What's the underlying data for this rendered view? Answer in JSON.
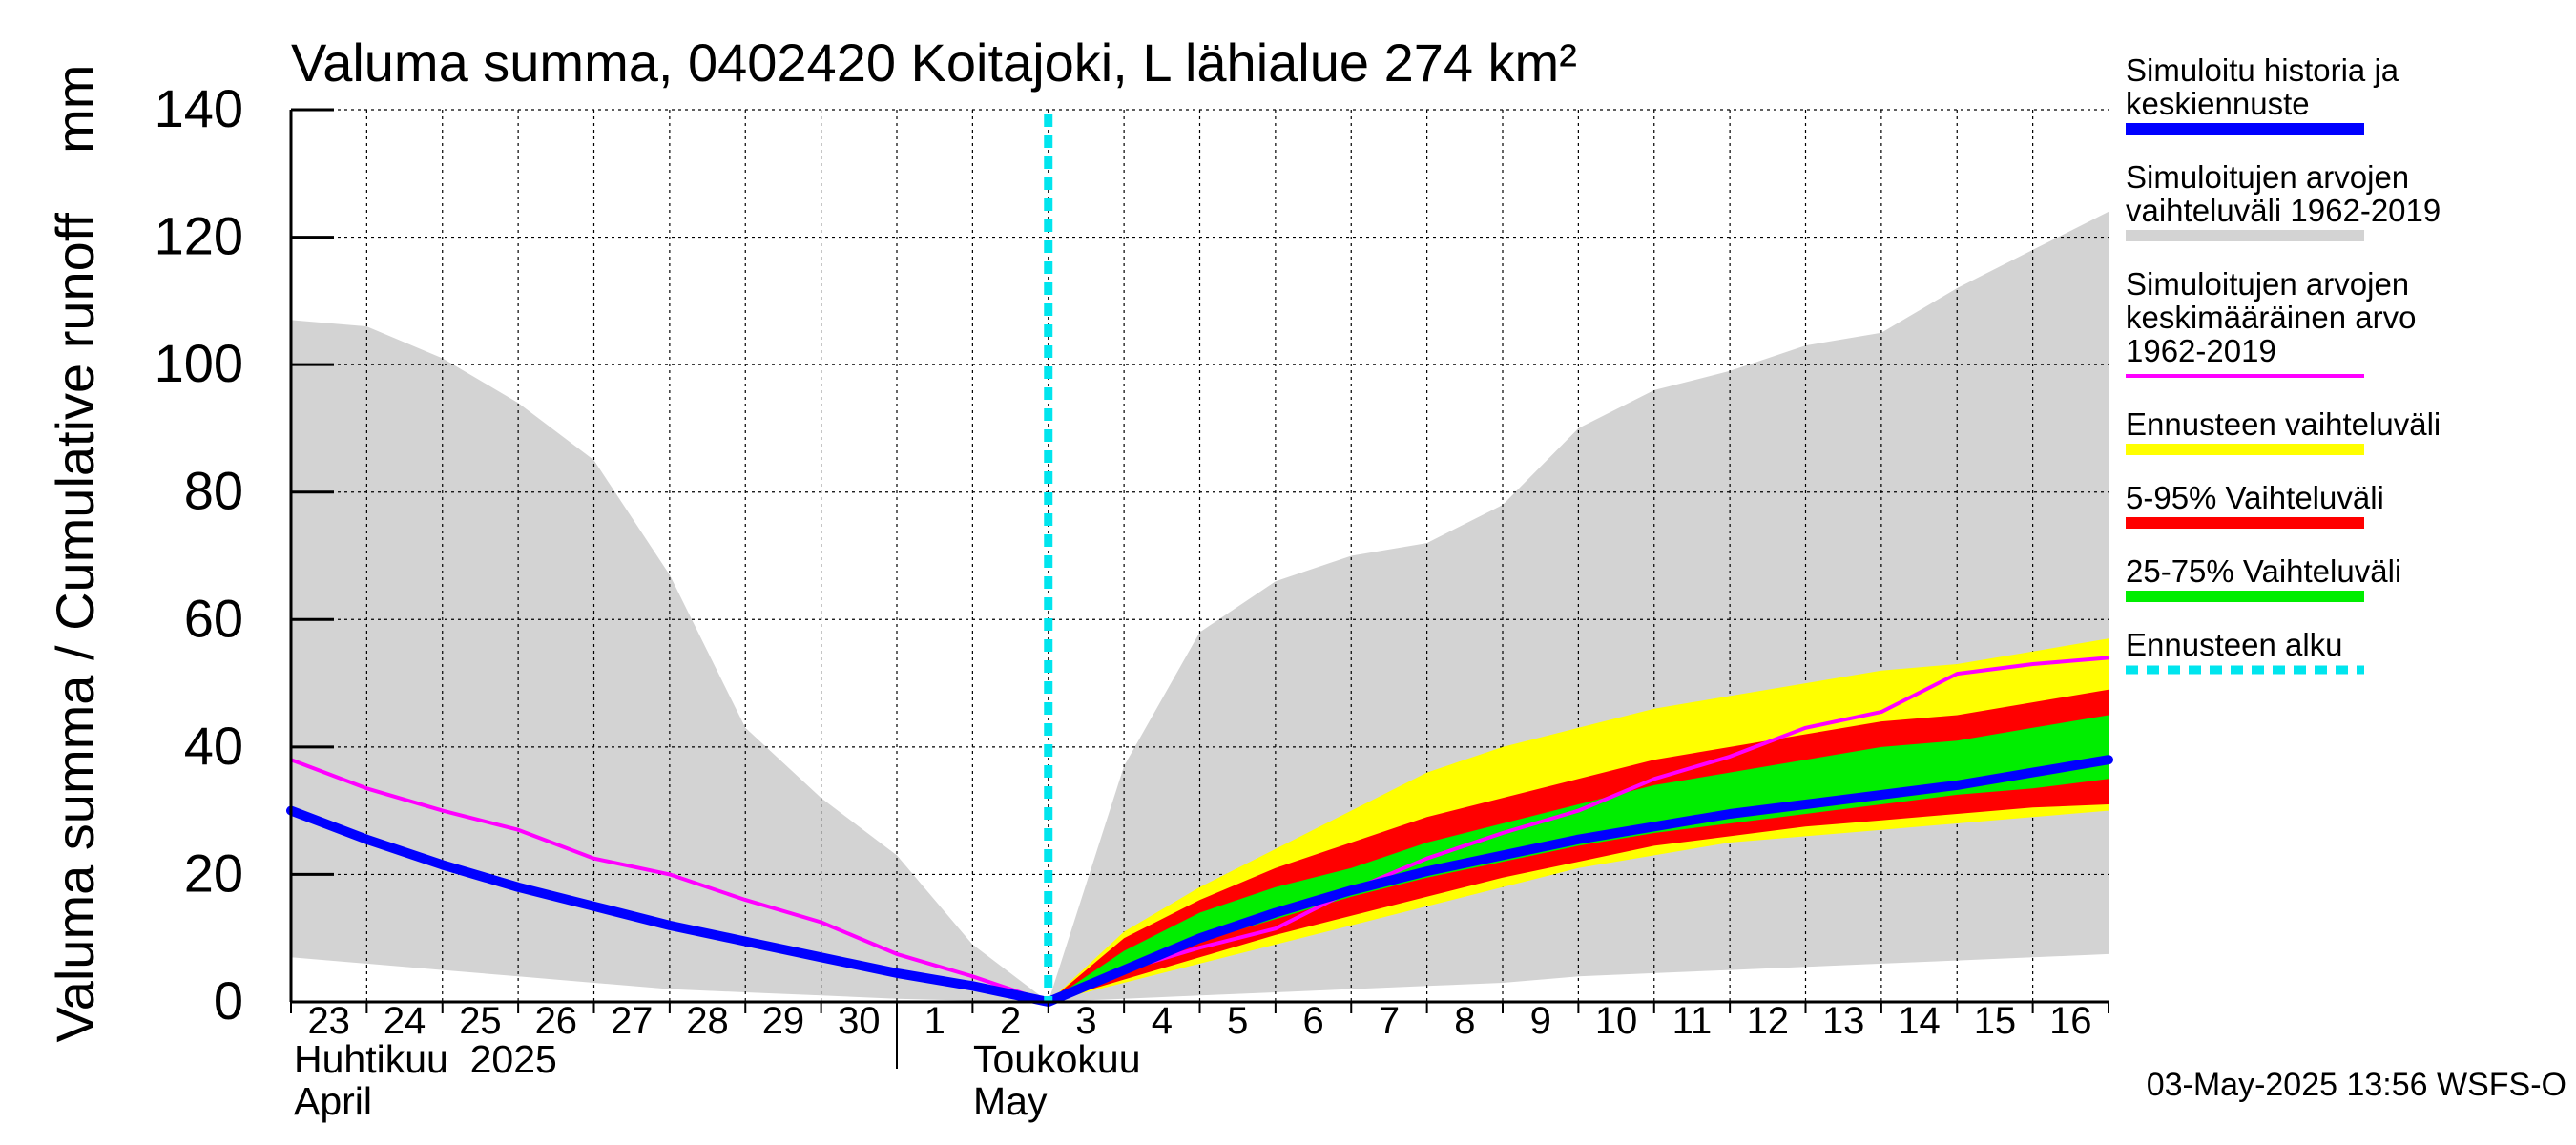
{
  "chart_data": {
    "type": "area",
    "title": "Valuma summa, 0402420 Koitajoki, L lähialue 274 km²",
    "ylabel": "Valuma summa / Cumulative runoff    mm",
    "ylim": [
      0,
      140
    ],
    "yticks": [
      "0",
      "20",
      "40",
      "60",
      "80",
      "100",
      "120",
      "140"
    ],
    "xlim": [
      0,
      24
    ],
    "day_labels": [
      "23",
      "24",
      "25",
      "26",
      "27",
      "28",
      "29",
      "30",
      "1",
      "2",
      "3",
      "4",
      "5",
      "6",
      "7",
      "8",
      "9",
      "10",
      "11",
      "12",
      "13",
      "14",
      "15",
      "16"
    ],
    "month_labels": {
      "april_fi": "Huhtikuu  2025",
      "april_en": "April",
      "may_fi": "Toukokuu",
      "may_en": "May"
    },
    "forecast_start_x": 10.0,
    "x": [
      0,
      1,
      2,
      3,
      4,
      5,
      6,
      7,
      8,
      9,
      10,
      11,
      12,
      13,
      14,
      15,
      16,
      17,
      18,
      19,
      20,
      21,
      22,
      23,
      24
    ],
    "hist_range": {
      "name": "Simuloitujen arvojen vaihteluväli 1962-2019",
      "color": "#d3d3d3",
      "upper": [
        107,
        106,
        101,
        94,
        85,
        67,
        43,
        32,
        23,
        9,
        0,
        37,
        58,
        66,
        70,
        72,
        78,
        90,
        96,
        99,
        103,
        105,
        112,
        118,
        124
      ],
      "lower": [
        7,
        6,
        5,
        4,
        3,
        2,
        1.5,
        1,
        0.5,
        0.2,
        0,
        0.5,
        1,
        1.5,
        2,
        2.5,
        3,
        4,
        4.5,
        5,
        5.5,
        6,
        6.5,
        7,
        7.5
      ]
    },
    "forecast_range": {
      "name": "Ennusteen vaihteluväli",
      "color": "#ffff00",
      "x": [
        10,
        11,
        12,
        13,
        14,
        15,
        16,
        17,
        18,
        19,
        20,
        21,
        22,
        23,
        24
      ],
      "upper": [
        0,
        11,
        18,
        24,
        30,
        36,
        40,
        43,
        46,
        48,
        50,
        52,
        53,
        55,
        57
      ],
      "lower": [
        0,
        3,
        6,
        9,
        12,
        15,
        18,
        21,
        23,
        25,
        26,
        27,
        28,
        29,
        30
      ]
    },
    "p5_95": {
      "name": "5-95% Vaihteluväli",
      "color": "#ff0000",
      "x": [
        10,
        11,
        12,
        13,
        14,
        15,
        16,
        17,
        18,
        19,
        20,
        21,
        22,
        23,
        24
      ],
      "upper": [
        0,
        10,
        16,
        21,
        25,
        29,
        32,
        35,
        38,
        40,
        42,
        44,
        45,
        47,
        49
      ],
      "lower": [
        0,
        3.5,
        7,
        10.5,
        13.5,
        16.5,
        19.5,
        22,
        24.5,
        26,
        27.5,
        28.5,
        29.5,
        30.5,
        31
      ]
    },
    "p25_75": {
      "name": "25-75% Vaihteluväli",
      "color": "#00ee00",
      "x": [
        10,
        11,
        12,
        13,
        14,
        15,
        16,
        17,
        18,
        19,
        20,
        21,
        22,
        23,
        24
      ],
      "upper": [
        0,
        8,
        14,
        18,
        21,
        25,
        28,
        31,
        34,
        36,
        38,
        40,
        41,
        43,
        45
      ],
      "lower": [
        0,
        5,
        9.5,
        13,
        16.5,
        19.5,
        22,
        24.5,
        26.5,
        28,
        29.5,
        31,
        32.5,
        33.5,
        35
      ]
    },
    "series": [
      {
        "name": "Simuloitu historia ja keskiennuste",
        "color": "#0000ff",
        "x": [
          0,
          1,
          2,
          3,
          4,
          5,
          6,
          7,
          8,
          9,
          10,
          11,
          12,
          13,
          14,
          15,
          16,
          17,
          18,
          19,
          20,
          21,
          22,
          23,
          24
        ],
        "values": [
          30,
          25.5,
          21.5,
          18,
          15,
          12,
          9.5,
          7,
          4.5,
          2.5,
          0,
          5,
          10,
          14,
          17.5,
          20.5,
          23,
          25.5,
          27.5,
          29.5,
          31,
          32.5,
          34,
          36,
          38
        ]
      },
      {
        "name": "Simuloitujen arvojen keskimääräinen arvo 1962-2019",
        "color": "#ff00ff",
        "x": [
          0,
          1,
          2,
          3,
          4,
          5,
          6,
          7,
          8,
          9,
          10,
          11,
          12,
          13,
          14,
          15,
          16,
          17,
          18,
          19,
          20,
          21,
          22,
          23,
          24
        ],
        "values": [
          38,
          33.5,
          30,
          27,
          22.5,
          20,
          16,
          12.5,
          7.5,
          4,
          0,
          5,
          8.5,
          11.5,
          17.5,
          22.5,
          26.5,
          30,
          35,
          38.5,
          43,
          45.5,
          51.5,
          53,
          54
        ]
      }
    ],
    "legend": [
      {
        "lines": [
          "Simuloitu historia ja",
          "keskiennuste"
        ],
        "color": "#0000ff",
        "style": "thick"
      },
      {
        "lines": [
          "Simuloitujen arvojen",
          "vaihteluväli 1962-2019"
        ],
        "color": "#d3d3d3",
        "style": "thick"
      },
      {
        "lines": [
          "Simuloitujen arvojen",
          "keskimääräinen arvo",
          "   1962-2019"
        ],
        "color": "#ff00ff",
        "style": "thin"
      },
      {
        "lines": [
          "Ennusteen vaihteluväli"
        ],
        "color": "#ffff00",
        "style": "thick"
      },
      {
        "lines": [
          "5-95% Vaihteluväli"
        ],
        "color": "#ff0000",
        "style": "thick"
      },
      {
        "lines": [
          "25-75% Vaihteluväli"
        ],
        "color": "#00ee00",
        "style": "thick"
      },
      {
        "lines": [
          "Ennusteen alku"
        ],
        "color": "#00e5ee",
        "style": "dashed"
      }
    ],
    "footer": "03-May-2025 13:56 WSFS-O"
  }
}
